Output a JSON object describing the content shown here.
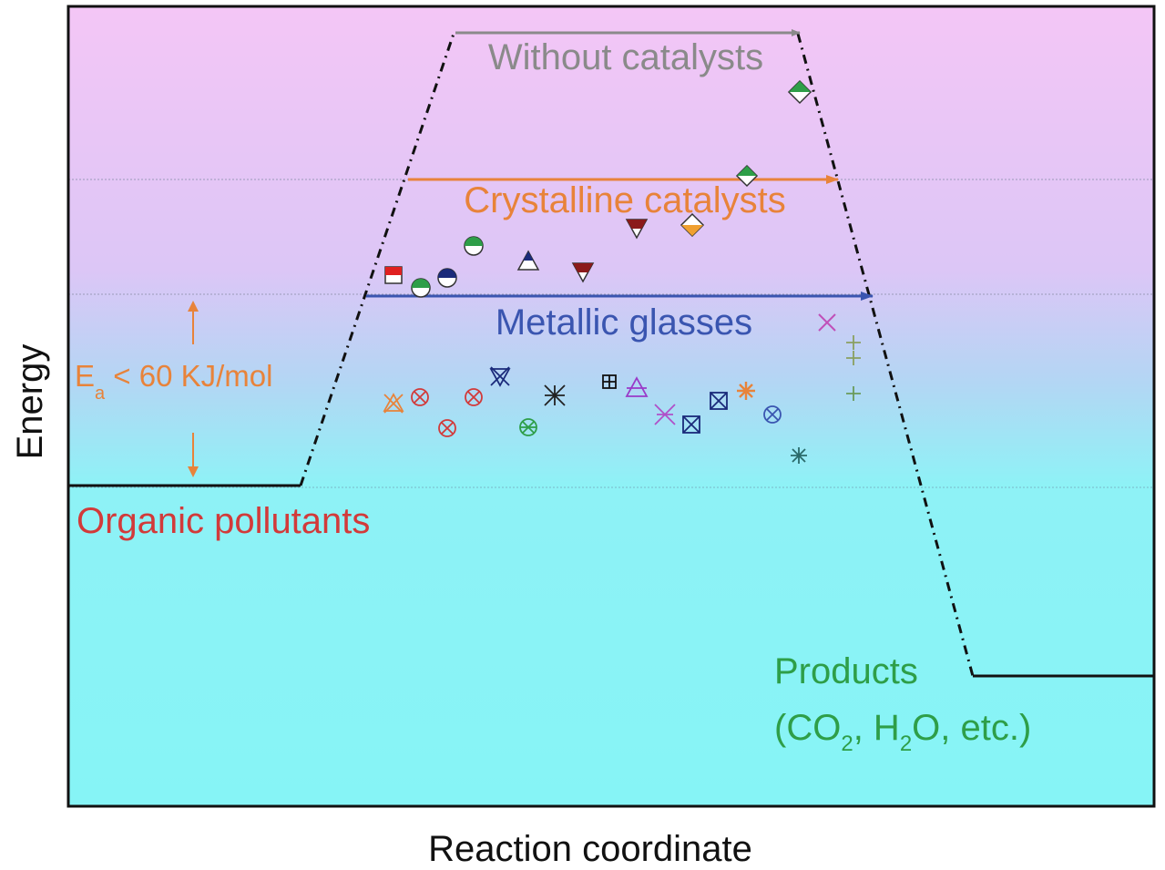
{
  "axes": {
    "x_label": "Reaction coordinate",
    "y_label": "Energy"
  },
  "labels": {
    "without": "Without catalysts",
    "crystalline": "Crystalline catalysts",
    "metallic": "Metallic glasses",
    "ea_prefix": "E",
    "ea_sub": "a",
    "ea_suffix": " < 60 KJ/mol",
    "reactants": "Organic pollutants",
    "products": "Products",
    "products_sub_1": "(CO",
    "products_sub_2": "2",
    "products_sub_3": ", H",
    "products_sub_4": "2",
    "products_sub_5": "O, etc.)"
  },
  "colors": {
    "without": "#8a8a8a",
    "crystalline": "#e8833a",
    "metallic": "#3a55b0",
    "reactants": "#d23a3a",
    "products": "#2e9e48",
    "ea": "#e8833a",
    "bg_top": "#f3c4f5",
    "bg_bottom": "#86f4f6"
  },
  "markers": {
    "crystalline": [
      "half-filled circle",
      "half-filled triangle",
      "half-filled diamond"
    ],
    "metallic": [
      "crossed circle",
      "crossed square",
      "asterisk",
      "plus",
      "cross"
    ]
  }
}
